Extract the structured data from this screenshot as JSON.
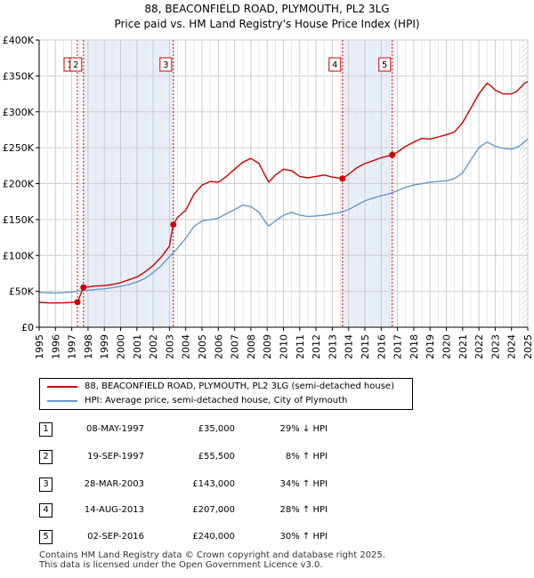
{
  "header": {
    "title": "88, BEACONFIELD ROAD, PLYMOUTH, PL2 3LG",
    "subtitle": "Price paid vs. HM Land Registry's House Price Index (HPI)"
  },
  "chart_data": {
    "type": "line",
    "title": "88, BEACONFIELD ROAD, PLYMOUTH, PL2 3LG",
    "subtitle": "Price paid vs. HM Land Registry's House Price Index (HPI)",
    "xlabel": "",
    "ylabel": "",
    "xlim": [
      1995,
      2025
    ],
    "ylim": [
      0,
      400000
    ],
    "grid": true,
    "x_ticks": [
      "1995",
      "1996",
      "1997",
      "1998",
      "1999",
      "2000",
      "2001",
      "2002",
      "2003",
      "2004",
      "2005",
      "2006",
      "2007",
      "2008",
      "2009",
      "2010",
      "2011",
      "2012",
      "2013",
      "2014",
      "2015",
      "2016",
      "2017",
      "2018",
      "2019",
      "2020",
      "2021",
      "2022",
      "2023",
      "2024",
      "2025"
    ],
    "y_ticks": [
      {
        "value": 0,
        "label": "£0"
      },
      {
        "value": 50000,
        "label": "£50K"
      },
      {
        "value": 100000,
        "label": "£100K"
      },
      {
        "value": 150000,
        "label": "£150K"
      },
      {
        "value": 200000,
        "label": "£200K"
      },
      {
        "value": 250000,
        "label": "£250K"
      },
      {
        "value": 300000,
        "label": "£300K"
      },
      {
        "value": 350000,
        "label": "£350K"
      },
      {
        "value": 400000,
        "label": "£400K"
      }
    ],
    "series": [
      {
        "name": "88, BEACONFIELD ROAD, PLYMOUTH, PL2 3LG (semi-detached house)",
        "color": "#cc0000",
        "x": [
          1995.0,
          1995.5,
          1996.0,
          1996.5,
          1997.0,
          1997.35,
          1997.36,
          1997.71,
          1997.72,
          1998.0,
          1998.5,
          1999.0,
          1999.5,
          2000.0,
          2000.5,
          2001.0,
          2001.5,
          2002.0,
          2002.5,
          2003.0,
          2003.23,
          2003.24,
          2003.5,
          2004.0,
          2004.5,
          2005.0,
          2005.5,
          2006.0,
          2006.5,
          2007.0,
          2007.5,
          2008.0,
          2008.5,
          2008.9,
          2009.1,
          2009.5,
          2010.0,
          2010.5,
          2011.0,
          2011.5,
          2012.0,
          2012.5,
          2013.0,
          2013.61,
          2013.62,
          2014.0,
          2014.5,
          2015.0,
          2015.5,
          2016.0,
          2016.67,
          2016.68,
          2017.0,
          2017.5,
          2018.0,
          2018.5,
          2019.0,
          2019.5,
          2020.0,
          2020.5,
          2021.0,
          2021.5,
          2022.0,
          2022.5,
          2022.8,
          2023.0,
          2023.5,
          2024.0,
          2024.3,
          2024.6,
          2024.8,
          2025.0
        ],
        "values": [
          34500,
          34000,
          33800,
          34000,
          34500,
          35000,
          35000,
          55500,
          55500,
          56000,
          57500,
          58000,
          59500,
          62000,
          66000,
          70000,
          77000,
          86000,
          98000,
          113000,
          143000,
          143000,
          153000,
          163000,
          185000,
          198000,
          203000,
          202000,
          210000,
          220000,
          230000,
          235000,
          228000,
          210000,
          202000,
          212000,
          220000,
          218000,
          210000,
          208000,
          210000,
          212000,
          209000,
          207000,
          207000,
          213000,
          222000,
          228000,
          232000,
          236000,
          240000,
          240000,
          244000,
          252000,
          258000,
          263000,
          262000,
          265000,
          268000,
          272000,
          285000,
          305000,
          325000,
          340000,
          335000,
          330000,
          325000,
          325000,
          328000,
          335000,
          340000,
          342000
        ]
      },
      {
        "name": "HPI: Average price, semi-detached house, City of Plymouth",
        "color": "#6699cc",
        "x": [
          1995.0,
          1995.5,
          1996.0,
          1996.5,
          1997.0,
          1997.5,
          1998.0,
          1998.5,
          1999.0,
          1999.5,
          2000.0,
          2000.5,
          2001.0,
          2001.5,
          2002.0,
          2002.5,
          2003.0,
          2003.5,
          2004.0,
          2004.5,
          2005.0,
          2005.5,
          2006.0,
          2006.5,
          2007.0,
          2007.5,
          2008.0,
          2008.5,
          2008.9,
          2009.1,
          2009.5,
          2010.0,
          2010.5,
          2011.0,
          2011.5,
          2012.0,
          2012.5,
          2013.0,
          2013.5,
          2014.0,
          2014.5,
          2015.0,
          2015.5,
          2016.0,
          2016.5,
          2017.0,
          2017.5,
          2018.0,
          2018.5,
          2019.0,
          2019.5,
          2020.0,
          2020.5,
          2021.0,
          2021.5,
          2022.0,
          2022.5,
          2023.0,
          2023.5,
          2024.0,
          2024.3,
          2024.6,
          2024.8,
          2025.0
        ],
        "values": [
          48500,
          48000,
          47500,
          48000,
          49000,
          50500,
          51500,
          52500,
          53500,
          55000,
          57000,
          59500,
          63000,
          68000,
          76000,
          86000,
          98000,
          110000,
          124000,
          140000,
          148000,
          150000,
          152000,
          158000,
          164000,
          170000,
          168000,
          160000,
          146000,
          141000,
          148000,
          156000,
          160000,
          156000,
          154000,
          155000,
          156000,
          158000,
          160000,
          164000,
          170000,
          176000,
          180000,
          183000,
          186000,
          190000,
          195000,
          198000,
          200000,
          202000,
          203000,
          204000,
          207000,
          215000,
          233000,
          250000,
          258000,
          252000,
          249000,
          248000,
          250000,
          254000,
          258000,
          262000
        ]
      }
    ],
    "annotations": [
      {
        "label": "1",
        "x": 1997.35,
        "value": 35000
      },
      {
        "label": "2",
        "x": 1997.72,
        "value": 55500
      },
      {
        "label": "3",
        "x": 2003.24,
        "value": 143000
      },
      {
        "label": "4",
        "x": 2013.62,
        "value": 207000
      },
      {
        "label": "5",
        "x": 2016.68,
        "value": 240000
      }
    ],
    "shaded_regions": [
      [
        1997.72,
        2003.24
      ],
      [
        2013.62,
        2016.68
      ]
    ],
    "hatched_region": [
      2024.6,
      2025.0
    ]
  },
  "legend": {
    "items": [
      {
        "label": "88, BEACONFIELD ROAD, PLYMOUTH, PL2 3LG (semi-detached house)",
        "color": "#cc0000"
      },
      {
        "label": "HPI: Average price, semi-detached house, City of Plymouth",
        "color": "#6699cc"
      }
    ]
  },
  "transactions": [
    {
      "num": "1",
      "date": "08-MAY-1997",
      "price": "£35,000",
      "hpi": "29% ↓ HPI"
    },
    {
      "num": "2",
      "date": "19-SEP-1997",
      "price": "£55,500",
      "hpi": "8% ↑ HPI"
    },
    {
      "num": "3",
      "date": "28-MAR-2003",
      "price": "£143,000",
      "hpi": "34% ↑ HPI"
    },
    {
      "num": "4",
      "date": "14-AUG-2013",
      "price": "£207,000",
      "hpi": "28% ↑ HPI"
    },
    {
      "num": "5",
      "date": "02-SEP-2016",
      "price": "£240,000",
      "hpi": "30% ↑ HPI"
    }
  ],
  "footer": {
    "line1": "Contains HM Land Registry data © Crown copyright and database right 2025.",
    "line2": "This data is licensed under the Open Government Licence v3.0."
  }
}
